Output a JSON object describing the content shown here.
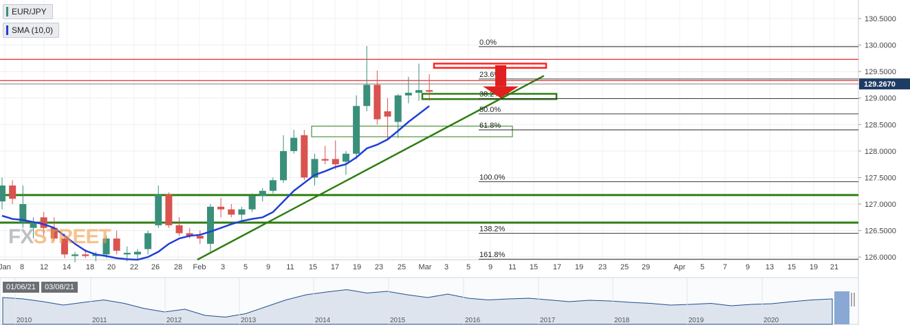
{
  "symbol_label": "EUR/JPY",
  "sma_label": "SMA (10,0)",
  "watermark": {
    "part1": "FX",
    "part2": "STREET"
  },
  "navigator_dates": [
    "01/06/21",
    "03/08/21"
  ],
  "colors": {
    "bull": "#3a8f7a",
    "bear": "#d9534f",
    "sma": "#1f3fd6",
    "support": "#2e7d12",
    "resistance": "#e03030",
    "price_tag": "#1e3b63"
  },
  "chart_data": {
    "type": "candlestick",
    "y_axis": {
      "ylim": [
        125.95,
        130.85
      ],
      "ticks": [
        "130.5000",
        "130.0000",
        "129.5000",
        "129.0000",
        "128.5000",
        "128.0000",
        "127.5000",
        "127.0000",
        "126.5000",
        "126.0000"
      ],
      "current_price": "129.2670"
    },
    "x_ticks": [
      "Jan",
      "8",
      "12",
      "14",
      "18",
      "20",
      "22",
      "26",
      "28",
      "Feb",
      "3",
      "5",
      "9",
      "11",
      "15",
      "17",
      "19",
      "23",
      "25",
      "Mar",
      "3",
      "5",
      "9",
      "11",
      "15",
      "17",
      "19",
      "23",
      "25",
      "29",
      "Apr",
      "5",
      "7",
      "9",
      "13",
      "15",
      "19",
      "21"
    ],
    "candles": [
      {
        "o": 127.05,
        "h": 127.5,
        "l": 126.9,
        "c": 127.35
      },
      {
        "o": 127.35,
        "h": 127.45,
        "l": 127.0,
        "c": 127.1
      },
      {
        "o": 126.65,
        "h": 127.35,
        "l": 126.55,
        "c": 127.0
      },
      {
        "o": 126.55,
        "h": 126.75,
        "l": 126.35,
        "c": 126.65
      },
      {
        "o": 126.75,
        "h": 126.85,
        "l": 126.4,
        "c": 126.55
      },
      {
        "o": 126.55,
        "h": 126.75,
        "l": 126.3,
        "c": 126.35
      },
      {
        "o": 126.35,
        "h": 126.45,
        "l": 125.98,
        "c": 126.05
      },
      {
        "o": 126.02,
        "h": 126.1,
        "l": 125.9,
        "c": 126.05
      },
      {
        "o": 126.05,
        "h": 126.15,
        "l": 125.98,
        "c": 126.02
      },
      {
        "o": 126.02,
        "h": 126.1,
        "l": 125.92,
        "c": 126.05
      },
      {
        "o": 126.05,
        "h": 126.4,
        "l": 125.98,
        "c": 126.35
      },
      {
        "o": 126.35,
        "h": 126.5,
        "l": 126.05,
        "c": 126.12
      },
      {
        "o": 126.05,
        "h": 126.2,
        "l": 125.92,
        "c": 126.08
      },
      {
        "o": 126.05,
        "h": 126.15,
        "l": 125.95,
        "c": 126.1
      },
      {
        "o": 126.15,
        "h": 126.5,
        "l": 126.05,
        "c": 126.45
      },
      {
        "o": 126.6,
        "h": 127.35,
        "l": 126.55,
        "c": 127.18
      },
      {
        "o": 127.18,
        "h": 127.22,
        "l": 126.55,
        "c": 126.6
      },
      {
        "o": 126.6,
        "h": 126.75,
        "l": 126.4,
        "c": 126.45
      },
      {
        "o": 126.45,
        "h": 126.55,
        "l": 126.35,
        "c": 126.4
      },
      {
        "o": 126.4,
        "h": 126.5,
        "l": 126.25,
        "c": 126.35
      },
      {
        "o": 126.25,
        "h": 127.0,
        "l": 126.1,
        "c": 126.95
      },
      {
        "o": 126.95,
        "h": 127.12,
        "l": 126.75,
        "c": 126.9
      },
      {
        "o": 126.9,
        "h": 127.0,
        "l": 126.75,
        "c": 126.8
      },
      {
        "o": 126.8,
        "h": 126.95,
        "l": 126.7,
        "c": 126.9
      },
      {
        "o": 126.9,
        "h": 127.2,
        "l": 126.85,
        "c": 127.15
      },
      {
        "o": 127.15,
        "h": 127.3,
        "l": 127.05,
        "c": 127.25
      },
      {
        "o": 127.25,
        "h": 127.5,
        "l": 127.2,
        "c": 127.45
      },
      {
        "o": 127.45,
        "h": 128.3,
        "l": 127.4,
        "c": 128.0
      },
      {
        "o": 128.0,
        "h": 128.4,
        "l": 127.95,
        "c": 128.25
      },
      {
        "o": 128.3,
        "h": 128.4,
        "l": 127.45,
        "c": 127.5
      },
      {
        "o": 127.5,
        "h": 127.95,
        "l": 127.35,
        "c": 127.85
      },
      {
        "o": 127.85,
        "h": 128.1,
        "l": 127.75,
        "c": 127.82
      },
      {
        "o": 127.85,
        "h": 128.2,
        "l": 127.65,
        "c": 127.75
      },
      {
        "o": 127.8,
        "h": 128.0,
        "l": 127.55,
        "c": 127.95
      },
      {
        "o": 127.95,
        "h": 129.05,
        "l": 127.85,
        "c": 128.85
      },
      {
        "o": 128.85,
        "h": 129.98,
        "l": 128.75,
        "c": 129.25
      },
      {
        "o": 129.25,
        "h": 129.52,
        "l": 128.5,
        "c": 128.6
      },
      {
        "o": 128.75,
        "h": 129.0,
        "l": 128.2,
        "c": 128.65
      },
      {
        "o": 128.55,
        "h": 129.08,
        "l": 128.25,
        "c": 129.05
      },
      {
        "o": 129.05,
        "h": 129.4,
        "l": 128.9,
        "c": 129.1
      },
      {
        "o": 129.1,
        "h": 129.65,
        "l": 128.95,
        "c": 129.15
      },
      {
        "o": 129.15,
        "h": 129.45,
        "l": 128.95,
        "c": 129.12
      }
    ],
    "sma_10": [
      126.78,
      126.72,
      126.7,
      126.66,
      126.62,
      126.55,
      126.4,
      126.25,
      126.12,
      126.05,
      126.02,
      125.98,
      125.96,
      125.95,
      126.0,
      126.1,
      126.25,
      126.35,
      126.4,
      126.42,
      126.48,
      126.55,
      126.62,
      126.68,
      126.72,
      126.75,
      126.85,
      127.05,
      127.25,
      127.4,
      127.55,
      127.62,
      127.7,
      127.75,
      127.88,
      128.05,
      128.12,
      128.22,
      128.38,
      128.55,
      128.7,
      128.85
    ],
    "horizontal_levels": [
      {
        "price": 129.73,
        "color": "resistance"
      },
      {
        "price": 129.33,
        "color": "resistance"
      },
      {
        "price": 127.17,
        "color": "support"
      },
      {
        "price": 126.65,
        "color": "support"
      }
    ],
    "fibonacci": [
      {
        "label": "0.0%",
        "price": 129.97
      },
      {
        "label": "23.6%",
        "price": 129.36
      },
      {
        "label": "38.2%",
        "price": 128.99
      },
      {
        "label": "50.0%",
        "price": 128.7
      },
      {
        "label": "61.8%",
        "price": 128.4
      },
      {
        "label": "100.0%",
        "price": 127.42
      },
      {
        "label": "138.2%",
        "price": 126.45
      },
      {
        "label": "161.8%",
        "price": 125.96
      }
    ],
    "navigator": {
      "years": [
        "2010",
        "2011",
        "2012",
        "2013",
        "2014",
        "2015",
        "2016",
        "2017",
        "2018",
        "2019",
        "2020"
      ],
      "values": [
        0.62,
        0.58,
        0.5,
        0.4,
        0.48,
        0.55,
        0.45,
        0.3,
        0.2,
        0.28,
        0.1,
        0.05,
        0.15,
        0.35,
        0.55,
        0.7,
        0.78,
        0.85,
        0.75,
        0.8,
        0.7,
        0.62,
        0.72,
        0.6,
        0.55,
        0.58,
        0.6,
        0.55,
        0.5,
        0.54,
        0.52,
        0.48,
        0.45,
        0.4,
        0.42,
        0.45,
        0.38,
        0.42,
        0.44,
        0.5,
        0.55,
        0.58
      ]
    }
  }
}
